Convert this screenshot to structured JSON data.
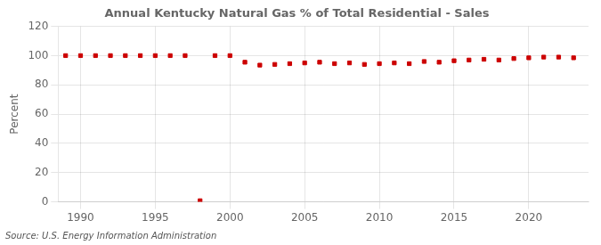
{
  "chart_data": {
    "type": "scatter",
    "title": "Annual Kentucky Natural Gas % of Total Residential - Sales",
    "ylabel": "Percent",
    "source": "Source: U.S. Energy Information Administration",
    "x": [
      1989,
      1990,
      1991,
      1992,
      1993,
      1994,
      1995,
      1996,
      1997,
      1998,
      1999,
      2000,
      2001,
      2002,
      2003,
      2004,
      2005,
      2006,
      2007,
      2008,
      2009,
      2010,
      2011,
      2012,
      2013,
      2014,
      2015,
      2016,
      2017,
      2018,
      2019,
      2020,
      2021,
      2022,
      2023
    ],
    "values": [
      100.0,
      100.0,
      100.0,
      100.0,
      100.0,
      100.0,
      100.0,
      100.0,
      100.0,
      0.8,
      100.0,
      100.0,
      95.5,
      93.5,
      94.0,
      94.5,
      95.0,
      95.5,
      94.5,
      95.0,
      94.0,
      94.5,
      95.0,
      94.5,
      96.0,
      95.5,
      96.5,
      97.0,
      97.5,
      97.0,
      98.0,
      98.5,
      99.0,
      99.0,
      98.5
    ],
    "color": "#cc0000",
    "marker": "square",
    "xlim": [
      1988.5,
      2024
    ],
    "xticks": [
      1990,
      1995,
      2000,
      2005,
      2010,
      2015,
      2020
    ],
    "ylim": [
      0,
      120
    ],
    "yticks": [
      0,
      20,
      40,
      60,
      80,
      100,
      120
    ],
    "grid": true
  }
}
